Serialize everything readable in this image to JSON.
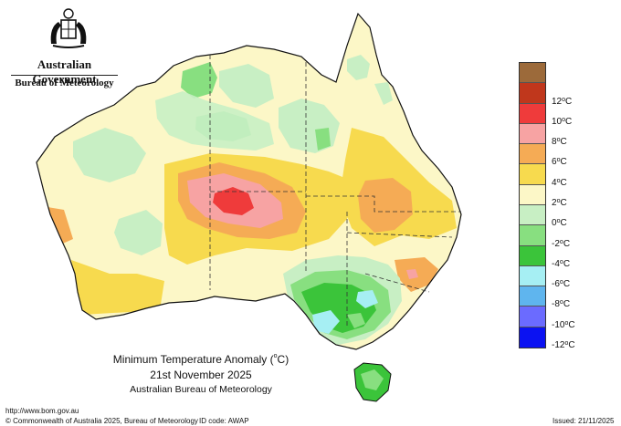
{
  "header": {
    "gov_title": "Australian Government",
    "gov_subtitle": "Bureau of Meteorology"
  },
  "map": {
    "title_prefix": "Minimum Temperature Anomaly (",
    "title_degree": "o",
    "title_suffix": "C)",
    "date": "21st November 2025",
    "agency": "Australian Bureau of Meteorology"
  },
  "legend": {
    "items": [
      {
        "color": "#9c6a3a",
        "label": ""
      },
      {
        "color": "#c0371c",
        "label": "12"
      },
      {
        "color": "#ef3b3b",
        "label": "10"
      },
      {
        "color": "#f7a3a3",
        "label": "8"
      },
      {
        "color": "#f5ab55",
        "label": "6"
      },
      {
        "color": "#f7da4e",
        "label": "4"
      },
      {
        "color": "#fcf7c7",
        "label": "2"
      },
      {
        "color": "#c8efc4",
        "label": "0"
      },
      {
        "color": "#88df80",
        "label": "-2"
      },
      {
        "color": "#3bc43a",
        "label": "-4"
      },
      {
        "color": "#a6eff3",
        "label": "-6"
      },
      {
        "color": "#5fb5ee",
        "label": "-8"
      },
      {
        "color": "#6b6bff",
        "label": "-10"
      },
      {
        "color": "#0b12f2",
        "label": "-12"
      }
    ],
    "unit_degree": "o",
    "unit_letter": "C"
  },
  "footer": {
    "url": "http://www.bom.gov.au",
    "copyright": "© Commonwealth of Australia 2025, Bureau of Meteorology",
    "id_code": "ID code: AWAP",
    "issued": "Issued: 21/11/2025"
  }
}
